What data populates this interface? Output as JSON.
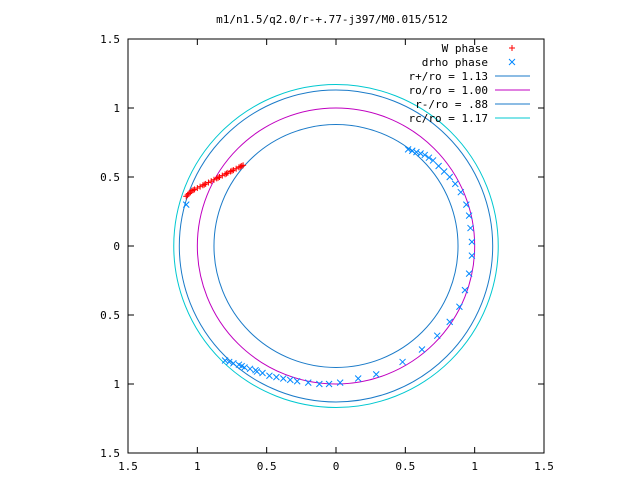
{
  "chart_data": {
    "type": "scatter",
    "title": "m1/n1.5/q2.0/r-+.77-j397/M0.015/512",
    "xlabel": "",
    "ylabel": "",
    "xlim": [
      -1.5,
      1.5
    ],
    "ylim": [
      -1.5,
      1.5
    ],
    "x_ticks": [
      {
        "value": -1.5,
        "label": "1.5"
      },
      {
        "value": -1.0,
        "label": "1"
      },
      {
        "value": -0.5,
        "label": "0.5"
      },
      {
        "value": 0.0,
        "label": "0"
      },
      {
        "value": 0.5,
        "label": "0.5"
      },
      {
        "value": 1.0,
        "label": "1"
      },
      {
        "value": 1.5,
        "label": "1.5"
      }
    ],
    "y_ticks": [
      {
        "value": 1.5,
        "label": "1.5"
      },
      {
        "value": 1.0,
        "label": "1"
      },
      {
        "value": 0.5,
        "label": "0.5"
      },
      {
        "value": 0.0,
        "label": "0"
      },
      {
        "value": -0.5,
        "label": "0.5"
      },
      {
        "value": -1.0,
        "label": "1"
      },
      {
        "value": -1.5,
        "label": "1.5"
      }
    ],
    "grid": false,
    "legend_position": "top-right",
    "legend": [
      {
        "label": "W phase",
        "marker": "plus",
        "color": "#ff0000"
      },
      {
        "label": "drho phase",
        "marker": "cross",
        "color": "#0088ff"
      },
      {
        "label": "r+/ro = 1.13",
        "line": true,
        "color": "#1a7ac8"
      },
      {
        "label": "ro/ro = 1.00",
        "line": true,
        "color": "#c000c0"
      },
      {
        "label": "r-/ro =  .88",
        "line": true,
        "color": "#1a7ac8"
      },
      {
        "label": "rc/ro = 1.17",
        "line": true,
        "color": "#00c8d0"
      }
    ],
    "circles": [
      {
        "name": "r+/ro",
        "radius": 1.13,
        "color": "#1a7ac8"
      },
      {
        "name": "ro/ro",
        "radius": 1.0,
        "color": "#c000c0"
      },
      {
        "name": "r-/ro",
        "radius": 0.88,
        "color": "#1a7ac8"
      },
      {
        "name": "rc/ro",
        "radius": 1.17,
        "color": "#00c8d0"
      }
    ],
    "series": [
      {
        "name": "W phase",
        "marker": "plus",
        "color": "#ff0000",
        "points": [
          [
            -1.08,
            0.36
          ],
          [
            -1.07,
            0.37
          ],
          [
            -1.06,
            0.38
          ],
          [
            -1.05,
            0.39
          ],
          [
            -1.04,
            0.4
          ],
          [
            -1.02,
            0.41
          ],
          [
            -1.0,
            0.42
          ],
          [
            -0.98,
            0.43
          ],
          [
            -0.96,
            0.44
          ],
          [
            -0.94,
            0.45
          ],
          [
            -0.92,
            0.46
          ],
          [
            -0.9,
            0.47
          ],
          [
            -0.88,
            0.48
          ],
          [
            -0.86,
            0.49
          ],
          [
            -0.84,
            0.5
          ],
          [
            -0.82,
            0.51
          ],
          [
            -0.8,
            0.52
          ],
          [
            -0.78,
            0.53
          ],
          [
            -0.76,
            0.54
          ],
          [
            -0.74,
            0.55
          ],
          [
            -0.72,
            0.56
          ],
          [
            -0.7,
            0.57
          ],
          [
            -0.69,
            0.575
          ],
          [
            -0.68,
            0.58
          ],
          [
            -0.67,
            0.585
          ],
          [
            -0.75,
            0.545
          ],
          [
            -0.85,
            0.495
          ],
          [
            -0.95,
            0.445
          ],
          [
            -1.03,
            0.405
          ],
          [
            -0.79,
            0.525
          ]
        ]
      },
      {
        "name": "drho phase",
        "marker": "cross",
        "color": "#0088ff",
        "points": [
          [
            0.52,
            0.7
          ],
          [
            0.55,
            0.69
          ],
          [
            0.58,
            0.68
          ],
          [
            0.61,
            0.67
          ],
          [
            0.64,
            0.66
          ],
          [
            0.67,
            0.64
          ],
          [
            0.7,
            0.62
          ],
          [
            0.74,
            0.58
          ],
          [
            0.78,
            0.54
          ],
          [
            0.82,
            0.5
          ],
          [
            0.86,
            0.45
          ],
          [
            0.9,
            0.39
          ],
          [
            0.94,
            0.3
          ],
          [
            0.96,
            0.22
          ],
          [
            0.97,
            0.13
          ],
          [
            0.98,
            0.03
          ],
          [
            0.98,
            -0.07
          ],
          [
            0.96,
            -0.2
          ],
          [
            0.93,
            -0.32
          ],
          [
            0.89,
            -0.44
          ],
          [
            0.82,
            -0.55
          ],
          [
            0.73,
            -0.65
          ],
          [
            0.62,
            -0.75
          ],
          [
            0.48,
            -0.84
          ],
          [
            0.29,
            -0.93
          ],
          [
            0.16,
            -0.96
          ],
          [
            0.03,
            -0.99
          ],
          [
            -0.05,
            -1.0
          ],
          [
            -0.12,
            -1.0
          ],
          [
            -0.2,
            -0.99
          ],
          [
            -0.28,
            -0.98
          ],
          [
            -0.33,
            -0.97
          ],
          [
            -0.38,
            -0.96
          ],
          [
            -0.43,
            -0.95
          ],
          [
            -0.48,
            -0.94
          ],
          [
            -0.53,
            -0.92
          ],
          [
            -0.58,
            -0.9
          ],
          [
            -0.62,
            -0.89
          ],
          [
            -0.66,
            -0.88
          ],
          [
            -0.7,
            -0.86
          ],
          [
            -0.74,
            -0.85
          ],
          [
            -0.77,
            -0.84
          ],
          [
            -0.8,
            -0.83
          ],
          [
            -0.57,
            -0.91
          ],
          [
            -0.68,
            -0.87
          ],
          [
            -1.08,
            0.3
          ]
        ]
      }
    ]
  }
}
